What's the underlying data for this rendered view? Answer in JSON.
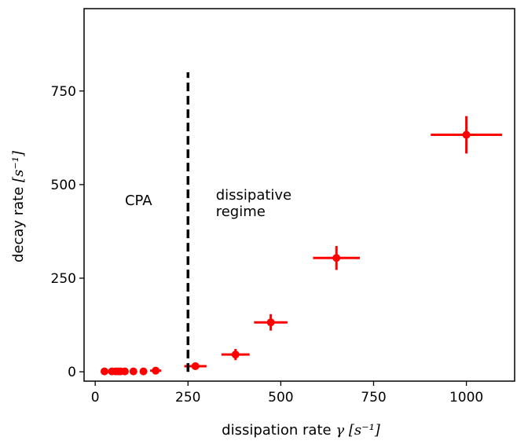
{
  "chart_data": {
    "type": "scatter",
    "xlabel": "dissipation rate",
    "xlabel_symbol": "γ",
    "xlabel_unit": "[s⁻¹]",
    "ylabel": "decay rate",
    "ylabel_unit": "[s⁻¹]",
    "xlim": [
      -30,
      1130
    ],
    "ylim": [
      -25,
      970
    ],
    "xticks": [
      0,
      250,
      500,
      750,
      1000
    ],
    "yticks": [
      0,
      250,
      500,
      750
    ],
    "xtick_labels": [
      "0",
      "250",
      "500",
      "750",
      "1000"
    ],
    "ytick_labels": [
      "0",
      "250",
      "500",
      "750"
    ],
    "grid": false,
    "legend": "none",
    "marker_color": "#ff0000",
    "points": [
      {
        "x": 25,
        "y": 1,
        "xerr": 2,
        "yerr": 0
      },
      {
        "x": 45,
        "y": 1,
        "xerr": 2,
        "yerr": 0
      },
      {
        "x": 55,
        "y": 1,
        "xerr": 3,
        "yerr": 0
      },
      {
        "x": 62,
        "y": 1,
        "xerr": 3,
        "yerr": 0
      },
      {
        "x": 68,
        "y": 1,
        "xerr": 3,
        "yerr": 0
      },
      {
        "x": 80,
        "y": 1,
        "xerr": 4,
        "yerr": 0
      },
      {
        "x": 103,
        "y": 1,
        "xerr": 5,
        "yerr": 0
      },
      {
        "x": 130,
        "y": 1,
        "xerr": 6,
        "yerr": 0
      },
      {
        "x": 163,
        "y": 3,
        "xerr": 15,
        "yerr": 3
      },
      {
        "x": 270,
        "y": 15,
        "xerr": 30,
        "yerr": 5
      },
      {
        "x": 378,
        "y": 46,
        "xerr": 38,
        "yerr": 15
      },
      {
        "x": 473,
        "y": 132,
        "xerr": 45,
        "yerr": 22
      },
      {
        "x": 650,
        "y": 304,
        "xerr": 63,
        "yerr": 32
      },
      {
        "x": 1000,
        "y": 633,
        "xerr": 96,
        "yerr": 50
      }
    ],
    "vline": {
      "x": 250,
      "y_from": 0,
      "y_to": 800,
      "style": "dashed",
      "color": "#000000"
    },
    "annotations": [
      {
        "lines": [
          "CPA"
        ],
        "x": 80,
        "y": 445
      },
      {
        "lines": [
          "dissipative",
          "regime"
        ],
        "x": 325,
        "y": 460
      }
    ]
  }
}
